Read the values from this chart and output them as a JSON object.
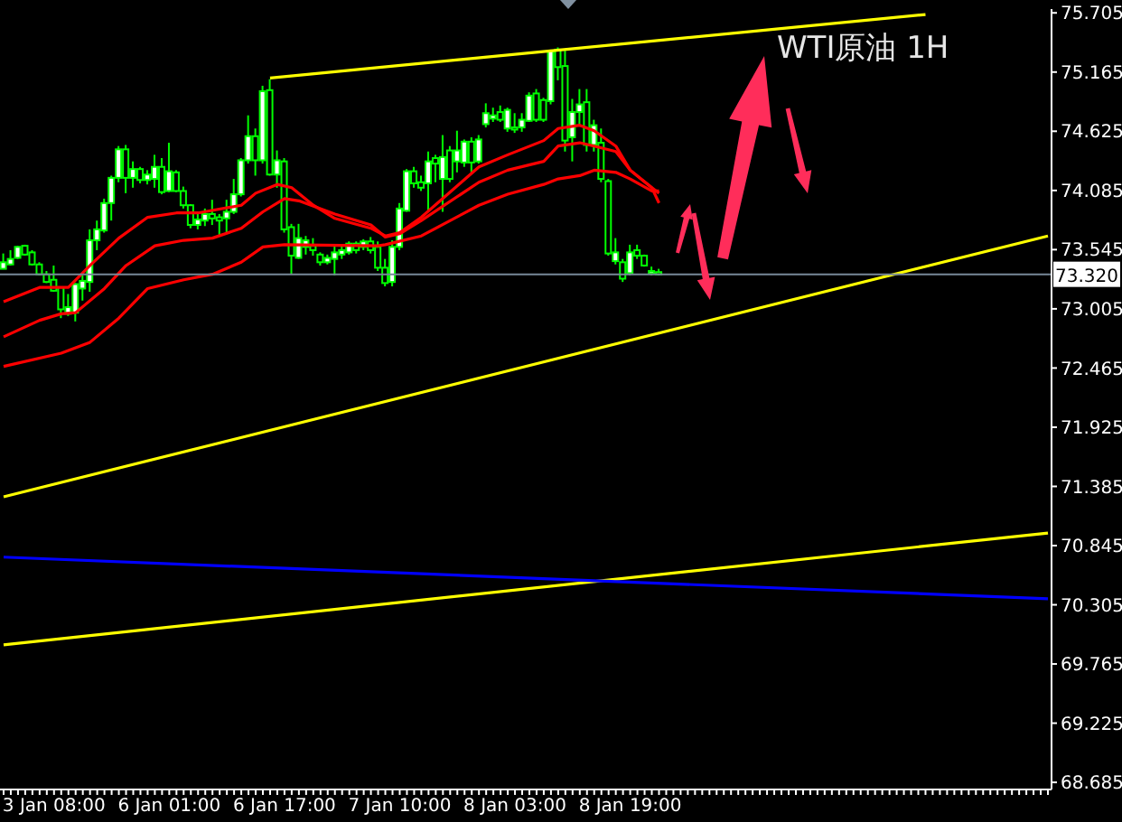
{
  "chart_data": {
    "type": "candlestick",
    "title": "WTI原油 1H",
    "color": "#00ff00",
    "categories": [
      null,
      null,
      null,
      null,
      null,
      null,
      null,
      "3 Jan 08:00",
      null,
      null,
      null,
      null,
      null,
      null,
      null,
      null,
      null,
      null,
      null,
      null,
      null,
      null,
      null,
      "6 Jan 01:00",
      null,
      null,
      null,
      null,
      null,
      null,
      null,
      null,
      null,
      null,
      null,
      null,
      null,
      null,
      null,
      "6 Jan 17:00",
      null,
      null,
      null,
      null,
      null,
      null,
      null,
      null,
      null,
      null,
      null,
      null,
      null,
      null,
      null,
      "7 Jan 10:00",
      null,
      null,
      null,
      null,
      null,
      null,
      null,
      null,
      null,
      null,
      null,
      null,
      null,
      null,
      null,
      "8 Jan 03:00",
      null,
      null,
      null,
      null,
      null,
      null,
      null,
      null,
      null,
      null,
      null,
      null,
      null,
      null,
      null,
      "8 Jan 19:00",
      null,
      null,
      null,
      null,
      null,
      null,
      null,
      null,
      null,
      null,
      null,
      null,
      null,
      null,
      null,
      null,
      null,
      null,
      null,
      null,
      null,
      null,
      null,
      null,
      null,
      null,
      null,
      null,
      null,
      null,
      null,
      null,
      null,
      null,
      null,
      null,
      null,
      null,
      null,
      null,
      null,
      null,
      null,
      null,
      null,
      null,
      null,
      null,
      null,
      null,
      null,
      null,
      null,
      null,
      null,
      null,
      null,
      null
    ],
    "ohlc": [
      [
        73.37,
        73.51,
        73.37,
        73.43
      ],
      [
        73.41,
        73.54,
        73.4,
        73.46
      ],
      [
        73.47,
        73.58,
        73.46,
        73.57
      ],
      [
        73.58,
        73.59,
        73.49,
        73.5
      ],
      [
        73.52,
        73.54,
        73.4,
        73.41
      ],
      [
        73.41,
        73.43,
        73.31,
        73.32
      ],
      [
        73.32,
        73.35,
        73.24,
        73.25
      ],
      [
        73.27,
        73.4,
        73.16,
        73.17
      ],
      [
        73.2,
        73.21,
        72.92,
        73.0
      ],
      [
        72.96,
        73.14,
        72.94,
        73.02
      ],
      [
        72.97,
        73.24,
        72.89,
        73.23
      ],
      [
        73.19,
        73.31,
        73.08,
        73.26
      ],
      [
        73.25,
        73.73,
        73.16,
        73.63
      ],
      [
        73.63,
        73.81,
        73.54,
        73.73
      ],
      [
        73.72,
        74.01,
        73.7,
        73.97
      ],
      [
        73.97,
        74.22,
        73.81,
        74.2
      ],
      [
        74.2,
        74.49,
        74.16,
        74.46
      ],
      [
        74.46,
        74.5,
        74.06,
        74.2
      ],
      [
        74.2,
        74.35,
        74.11,
        74.28
      ],
      [
        74.28,
        74.3,
        74.15,
        74.18
      ],
      [
        74.18,
        74.27,
        74.14,
        74.23
      ],
      [
        74.19,
        74.41,
        74.11,
        74.3
      ],
      [
        74.3,
        74.38,
        74.05,
        74.07
      ],
      [
        74.08,
        74.52,
        74.07,
        74.26
      ],
      [
        74.25,
        74.27,
        74.07,
        74.08
      ],
      [
        74.08,
        74.12,
        73.92,
        73.95
      ],
      [
        73.95,
        73.96,
        73.74,
        73.77
      ],
      [
        73.77,
        73.89,
        73.73,
        73.82
      ],
      [
        73.81,
        73.92,
        73.76,
        73.87
      ],
      [
        73.87,
        74.0,
        73.77,
        73.83
      ],
      [
        73.84,
        73.87,
        73.67,
        73.81
      ],
      [
        73.83,
        74.0,
        73.7,
        73.89
      ],
      [
        73.89,
        74.19,
        73.87,
        74.05
      ],
      [
        74.05,
        74.38,
        74.03,
        74.36
      ],
      [
        74.36,
        74.77,
        74.33,
        74.58
      ],
      [
        74.58,
        74.65,
        74.22,
        74.36
      ],
      [
        74.36,
        75.04,
        74.33,
        74.99
      ],
      [
        75.0,
        75.1,
        74.22,
        74.23
      ],
      [
        74.23,
        74.45,
        74.11,
        74.36
      ],
      [
        74.35,
        74.38,
        73.7,
        73.73
      ],
      [
        73.75,
        73.78,
        73.32,
        73.49
      ],
      [
        73.47,
        73.78,
        73.46,
        73.65
      ],
      [
        73.57,
        73.67,
        73.5,
        73.63
      ],
      [
        73.58,
        73.65,
        73.49,
        73.54
      ],
      [
        73.5,
        73.52,
        73.4,
        73.43
      ],
      [
        73.43,
        73.5,
        73.41,
        73.47
      ],
      [
        73.46,
        73.59,
        73.31,
        73.52
      ],
      [
        73.5,
        73.59,
        73.46,
        73.54
      ],
      [
        73.52,
        73.62,
        73.5,
        73.6
      ],
      [
        73.6,
        73.62,
        73.51,
        73.54
      ],
      [
        73.57,
        73.64,
        73.54,
        73.62
      ],
      [
        73.62,
        73.66,
        73.51,
        73.54
      ],
      [
        73.57,
        73.62,
        73.35,
        73.38
      ],
      [
        73.38,
        73.46,
        73.21,
        73.24
      ],
      [
        73.25,
        73.63,
        73.21,
        73.57
      ],
      [
        73.57,
        73.97,
        73.54,
        73.92
      ],
      [
        73.9,
        74.28,
        73.89,
        74.26
      ],
      [
        74.26,
        74.3,
        74.11,
        74.15
      ],
      [
        74.16,
        74.22,
        74.08,
        74.11
      ],
      [
        74.15,
        74.44,
        73.89,
        74.35
      ],
      [
        74.38,
        74.41,
        74.16,
        74.33
      ],
      [
        74.19,
        74.59,
        73.89,
        74.39
      ],
      [
        74.45,
        74.49,
        74.16,
        74.19
      ],
      [
        74.35,
        74.63,
        74.25,
        74.45
      ],
      [
        74.34,
        74.55,
        74.3,
        74.53
      ],
      [
        74.53,
        74.57,
        74.25,
        74.34
      ],
      [
        74.35,
        74.59,
        74.33,
        74.55
      ],
      [
        74.69,
        74.88,
        74.66,
        74.79
      ],
      [
        74.74,
        74.84,
        74.71,
        74.77
      ],
      [
        74.8,
        74.86,
        74.71,
        74.73
      ],
      [
        74.65,
        74.84,
        74.62,
        74.82
      ],
      [
        74.66,
        74.79,
        74.61,
        74.64
      ],
      [
        74.66,
        74.79,
        74.62,
        74.73
      ],
      [
        74.72,
        74.98,
        74.71,
        74.95
      ],
      [
        74.97,
        75.01,
        74.71,
        74.73
      ],
      [
        74.91,
        74.93,
        74.71,
        74.73
      ],
      [
        74.9,
        75.37,
        74.87,
        75.36
      ],
      [
        75.37,
        75.39,
        75.09,
        75.21
      ],
      [
        75.22,
        75.36,
        74.44,
        74.54
      ],
      [
        74.57,
        74.92,
        74.35,
        74.8
      ],
      [
        74.8,
        75.01,
        74.68,
        74.87
      ],
      [
        74.89,
        75.01,
        74.44,
        74.5
      ],
      [
        74.5,
        74.73,
        74.44,
        74.68
      ],
      [
        74.52,
        74.65,
        74.16,
        74.19
      ],
      [
        74.17,
        74.19,
        73.49,
        73.51
      ],
      [
        73.44,
        73.65,
        73.41,
        73.52
      ],
      [
        73.43,
        73.46,
        73.25,
        73.28
      ],
      [
        73.33,
        73.59,
        73.31,
        73.52
      ],
      [
        73.54,
        73.59,
        73.46,
        73.49
      ],
      [
        73.49,
        73.5,
        73.39,
        73.4
      ],
      [
        73.33,
        73.39,
        73.31,
        73.35
      ],
      [
        73.34,
        73.37,
        73.31,
        73.32
      ],
      null,
      null,
      null,
      null,
      null,
      null,
      null,
      null,
      null,
      null,
      null,
      null,
      null,
      null,
      null,
      null,
      null,
      null,
      null,
      null,
      null,
      null,
      null,
      null,
      null,
      null,
      null,
      null,
      null,
      null,
      null,
      null,
      null,
      null,
      null,
      null,
      null,
      null,
      null,
      null,
      null,
      null,
      null,
      null,
      null,
      null,
      null,
      null,
      null,
      null,
      null,
      null,
      null,
      null
    ],
    "series": [
      {
        "type": "line",
        "color": "#ff0000",
        "values": [
          73.07,
          null,
          null,
          null,
          null,
          73.2,
          null,
          null,
          null,
          73.2,
          null,
          null,
          73.4,
          null,
          null,
          null,
          73.65,
          null,
          null,
          null,
          73.84,
          null,
          null,
          null,
          73.88,
          null,
          null,
          73.88,
          null,
          null,
          null,
          null,
          null,
          73.95,
          null,
          74.06,
          null,
          null,
          74.14,
          null,
          74.11,
          null,
          null,
          73.95,
          null,
          null,
          73.83,
          null,
          null,
          null,
          null,
          73.74,
          null,
          73.67,
          null,
          73.7,
          null,
          null,
          73.84,
          null,
          null,
          null,
          null,
          null,
          null,
          null,
          74.3,
          null,
          null,
          null,
          74.41,
          null,
          null,
          null,
          null,
          74.54,
          null,
          74.65,
          null,
          null,
          74.68,
          null,
          74.63,
          null,
          null,
          74.49,
          null,
          74.27,
          null,
          null,
          74.11,
          73.97,
          null,
          null,
          null,
          null,
          null,
          null,
          null,
          null,
          null,
          null,
          null,
          null,
          null,
          null,
          null,
          null,
          null,
          null,
          null,
          null,
          null,
          null,
          null,
          null,
          null,
          null,
          null,
          null,
          null,
          null,
          null,
          null,
          null,
          null,
          null,
          null,
          null,
          null,
          null,
          null,
          null,
          null,
          null,
          null,
          null,
          null,
          null,
          null,
          null,
          null,
          null,
          null,
          null,
          null
        ]
      },
      {
        "type": "line",
        "color": "#ff0000",
        "values": [
          72.75,
          null,
          null,
          null,
          null,
          72.9,
          null,
          null,
          72.96,
          null,
          72.97,
          null,
          null,
          null,
          73.19,
          null,
          null,
          73.4,
          null,
          null,
          null,
          73.58,
          null,
          null,
          null,
          73.63,
          null,
          null,
          null,
          73.65,
          null,
          null,
          null,
          73.74,
          null,
          null,
          73.89,
          null,
          null,
          74.01,
          null,
          73.99,
          null,
          null,
          null,
          null,
          73.87,
          null,
          null,
          null,
          null,
          73.77,
          null,
          73.66,
          null,
          73.69,
          null,
          null,
          73.81,
          null,
          null,
          null,
          null,
          null,
          null,
          null,
          74.16,
          null,
          null,
          null,
          74.27,
          null,
          null,
          null,
          null,
          74.35,
          null,
          74.49,
          null,
          null,
          74.52,
          null,
          74.49,
          null,
          null,
          74.44,
          null,
          74.27,
          null,
          null,
          74.11,
          74.06,
          null,
          null,
          null,
          null,
          null,
          null,
          null,
          null,
          null,
          null,
          null,
          null,
          null,
          null,
          null,
          null,
          null,
          null,
          null,
          null,
          null,
          null,
          null,
          null,
          null,
          null,
          null,
          null,
          null,
          null,
          null,
          null,
          null,
          null,
          null,
          null,
          null,
          null,
          null,
          null,
          null,
          null,
          null,
          null,
          null,
          null,
          null,
          null,
          null,
          null,
          null,
          null,
          null,
          null
        ]
      },
      {
        "type": "line",
        "color": "#ff0000",
        "values": [
          72.48,
          null,
          null,
          null,
          null,
          null,
          null,
          null,
          72.6,
          null,
          null,
          null,
          72.7,
          null,
          null,
          null,
          72.92,
          null,
          null,
          null,
          73.19,
          null,
          null,
          null,
          null,
          73.27,
          null,
          null,
          null,
          73.32,
          null,
          null,
          null,
          73.43,
          null,
          null,
          73.57,
          null,
          null,
          73.59,
          null,
          null,
          null,
          null,
          null,
          null,
          null,
          null,
          null,
          null,
          null,
          null,
          73.58,
          73.59,
          null,
          null,
          null,
          null,
          73.67,
          null,
          null,
          null,
          null,
          null,
          null,
          null,
          73.95,
          null,
          null,
          null,
          74.05,
          null,
          null,
          null,
          null,
          74.14,
          null,
          74.19,
          null,
          null,
          74.22,
          null,
          74.27,
          null,
          null,
          74.25,
          null,
          74.19,
          null,
          null,
          74.08,
          74.08,
          null,
          null,
          null,
          null,
          null,
          null,
          null,
          null,
          null,
          null,
          null,
          null,
          null,
          null,
          null,
          null,
          null,
          null,
          null,
          null,
          null,
          null,
          null,
          null,
          null,
          null,
          null,
          null,
          null,
          null,
          null,
          null,
          null,
          null,
          null,
          null,
          null,
          null,
          null,
          null,
          null,
          null,
          null,
          null,
          null,
          null,
          null,
          null,
          null,
          null,
          null,
          null,
          null,
          null
        ]
      },
      {
        "type": "line",
        "color": "#ffff00",
        "values": [
          null,
          null,
          null,
          null,
          null,
          null,
          null,
          null,
          null,
          null,
          null,
          null,
          null,
          null,
          null,
          null,
          null,
          null,
          null,
          null,
          null,
          null,
          null,
          null,
          null,
          null,
          null,
          null,
          null,
          null,
          null,
          null,
          null,
          null,
          null,
          null,
          null,
          75.11,
          null,
          null,
          null,
          null,
          null,
          null,
          null,
          null,
          null,
          null,
          null,
          null,
          null,
          null,
          null,
          null,
          null,
          null,
          null,
          null,
          null,
          null,
          null,
          null,
          null,
          null,
          null,
          null,
          null,
          null,
          null,
          null,
          null,
          null,
          null,
          null,
          null,
          null,
          null,
          null,
          null,
          null,
          null,
          null,
          null,
          null,
          null,
          null,
          null,
          null,
          null,
          null,
          null,
          null,
          null,
          null,
          null,
          null,
          null,
          null,
          null,
          null,
          null,
          null,
          null,
          null,
          null,
          null,
          null,
          null,
          null,
          null,
          null,
          null,
          null,
          null,
          null,
          null,
          null,
          null,
          null,
          null,
          null,
          null,
          null,
          null,
          null,
          null,
          null,
          null,
          75.69,
          null,
          null,
          null,
          null,
          null,
          null,
          null,
          null,
          null,
          null,
          null,
          null,
          null,
          null,
          null,
          null,
          null
        ]
      },
      {
        "type": "line",
        "color": "#ffff00",
        "values": [
          71.29,
          null,
          null,
          null,
          null,
          null,
          null,
          null,
          null,
          null,
          null,
          null,
          null,
          null,
          null,
          null,
          null,
          null,
          null,
          null,
          null,
          null,
          null,
          null,
          null,
          null,
          null,
          null,
          null,
          null,
          null,
          null,
          null,
          null,
          null,
          null,
          null,
          null,
          null,
          null,
          null,
          null,
          null,
          null,
          null,
          null,
          null,
          null,
          null,
          null,
          null,
          null,
          null,
          null,
          null,
          null,
          null,
          null,
          null,
          null,
          null,
          null,
          null,
          null,
          null,
          null,
          null,
          null,
          null,
          null,
          null,
          null,
          null,
          null,
          null,
          null,
          null,
          null,
          null,
          null,
          null,
          null,
          null,
          null,
          null,
          null,
          null,
          null,
          null,
          null,
          null,
          null,
          null,
          null,
          null,
          null,
          null,
          null,
          null,
          null,
          null,
          null,
          null,
          null,
          null,
          null,
          null,
          null,
          null,
          null,
          null,
          null,
          null,
          null,
          null,
          null,
          null,
          null,
          null,
          null,
          null,
          null,
          null,
          null,
          null,
          null,
          null,
          null,
          null,
          null,
          null,
          null,
          null,
          null,
          null,
          null,
          null,
          null,
          null,
          null,
          null,
          null,
          null,
          null,
          null,
          73.67
        ]
      },
      {
        "type": "line",
        "color": "#ffff00",
        "values": [
          69.94,
          null,
          null,
          null,
          null,
          null,
          null,
          null,
          null,
          null,
          null,
          null,
          null,
          null,
          null,
          null,
          null,
          null,
          null,
          null,
          null,
          null,
          null,
          null,
          null,
          null,
          null,
          null,
          null,
          null,
          null,
          null,
          null,
          null,
          null,
          null,
          null,
          null,
          null,
          null,
          null,
          null,
          null,
          null,
          null,
          null,
          null,
          null,
          null,
          null,
          null,
          null,
          null,
          null,
          null,
          null,
          null,
          null,
          null,
          null,
          null,
          null,
          null,
          null,
          null,
          null,
          null,
          null,
          null,
          null,
          null,
          null,
          null,
          null,
          null,
          null,
          null,
          null,
          null,
          null,
          null,
          null,
          null,
          null,
          null,
          null,
          null,
          null,
          null,
          null,
          null,
          null,
          null,
          null,
          null,
          null,
          null,
          null,
          null,
          null,
          null,
          null,
          null,
          null,
          null,
          null,
          null,
          null,
          null,
          null,
          null,
          null,
          null,
          null,
          null,
          null,
          null,
          null,
          null,
          null,
          null,
          null,
          null,
          null,
          null,
          null,
          null,
          null,
          null,
          null,
          null,
          null,
          null,
          null,
          null,
          null,
          null,
          null,
          null,
          null,
          null,
          null,
          null,
          null,
          null,
          70.96
        ]
      },
      {
        "type": "line",
        "color": "#0000ff",
        "values": [
          70.74,
          null,
          null,
          null,
          null,
          null,
          null,
          null,
          null,
          null,
          null,
          null,
          null,
          null,
          null,
          null,
          null,
          null,
          null,
          null,
          null,
          null,
          null,
          null,
          null,
          null,
          null,
          null,
          null,
          null,
          null,
          null,
          null,
          null,
          null,
          null,
          null,
          null,
          null,
          null,
          null,
          null,
          null,
          null,
          null,
          null,
          null,
          null,
          null,
          null,
          null,
          null,
          null,
          null,
          null,
          null,
          null,
          null,
          null,
          null,
          null,
          null,
          null,
          null,
          null,
          null,
          null,
          null,
          null,
          null,
          null,
          null,
          null,
          null,
          null,
          null,
          null,
          null,
          null,
          null,
          null,
          null,
          null,
          null,
          null,
          null,
          null,
          null,
          null,
          null,
          null,
          null,
          null,
          null,
          null,
          null,
          null,
          null,
          null,
          null,
          null,
          null,
          null,
          null,
          null,
          null,
          null,
          null,
          null,
          null,
          null,
          null,
          null,
          null,
          null,
          null,
          null,
          null,
          null,
          null,
          null,
          null,
          null,
          null,
          null,
          null,
          null,
          null,
          null,
          null,
          null,
          null,
          null,
          null,
          null,
          null,
          null,
          null,
          null,
          null,
          null,
          null,
          null,
          null,
          null,
          70.36
        ]
      }
    ],
    "ref_lines": [
      {
        "axis": "y",
        "value": 73.32,
        "label": "73.320",
        "color": "#778899"
      }
    ],
    "ylim": [
      68.62,
      75.74
    ],
    "yticks": [
      75.705,
      75.165,
      74.625,
      74.085,
      73.545,
      73.005,
      72.465,
      71.925,
      71.385,
      70.845,
      70.305,
      69.765,
      69.225,
      68.685
    ]
  }
}
